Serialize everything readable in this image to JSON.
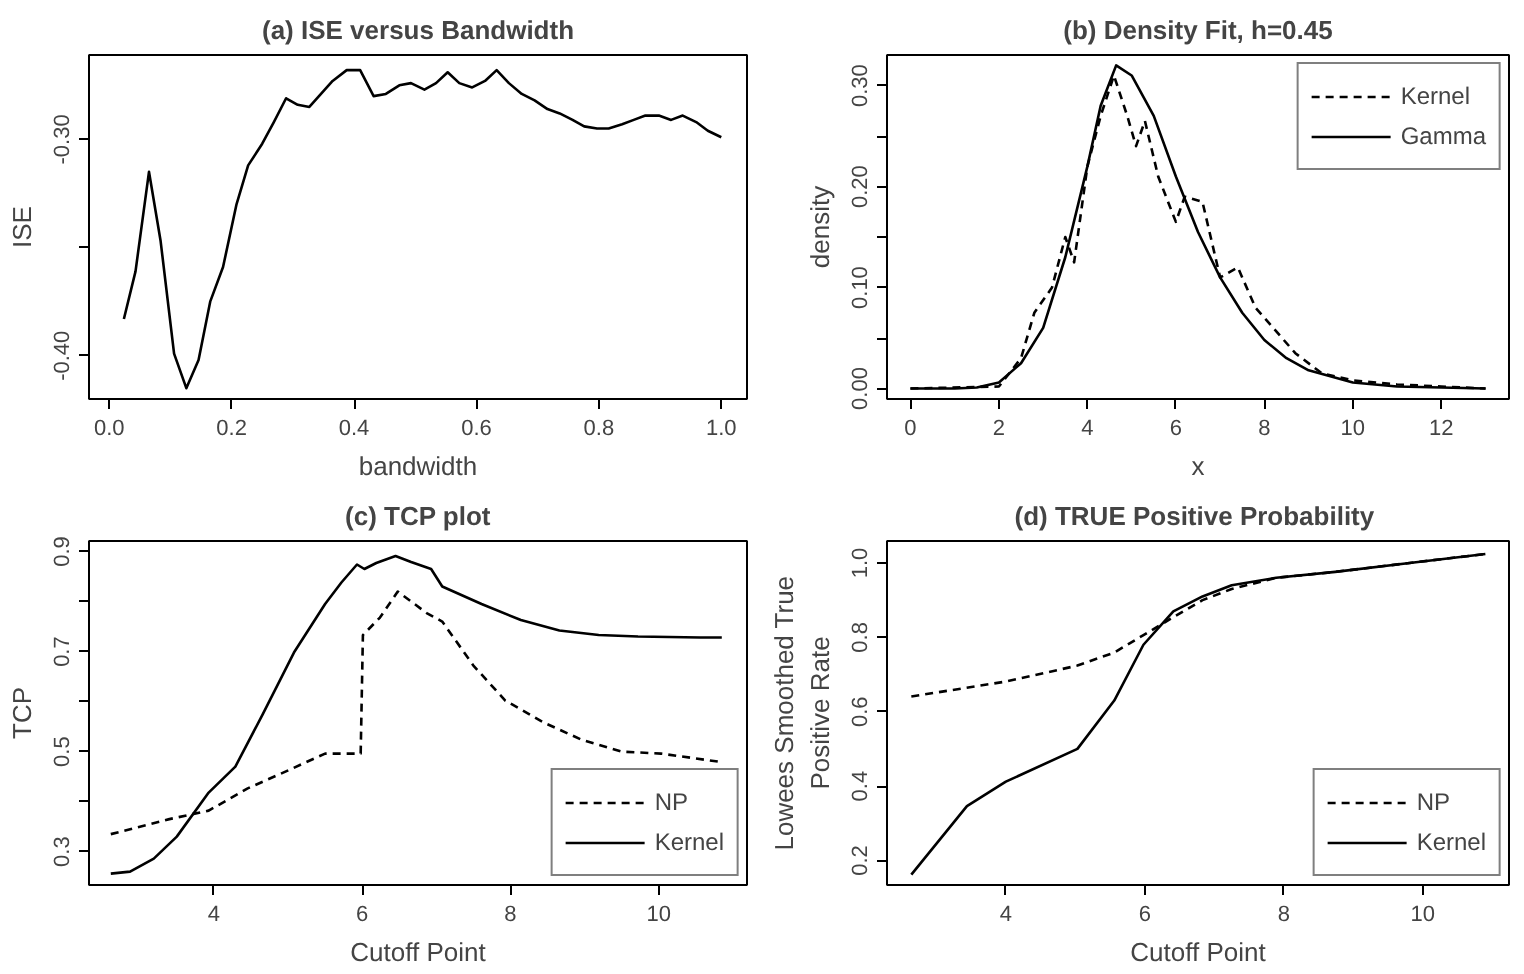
{
  "chart_data": [
    {
      "type": "line",
      "title": "(a) ISE versus Bandwidth",
      "xlabel": "bandwidth",
      "ylabel": "ISE",
      "xlim": [
        -0.033,
        1.042
      ],
      "ylim": [
        -0.42,
        -0.261
      ],
      "xticks": [
        {
          "value": 0,
          "label": "0.0"
        },
        {
          "value": 0.2,
          "label": "0.2"
        },
        {
          "value": 0.4,
          "label": "0.4"
        },
        {
          "value": 0.6,
          "label": "0.6"
        },
        {
          "value": 0.8,
          "label": "0.8"
        },
        {
          "value": 1,
          "label": "1.0"
        }
      ],
      "yticks": [
        {
          "value": -0.4,
          "label": "-0.40"
        },
        {
          "value": -0.35,
          "label": null
        },
        {
          "value": -0.3,
          "label": "-0.30"
        }
      ],
      "grid": false,
      "legend": false,
      "series": [
        {
          "color": "#000000",
          "line_style": "solid",
          "x": [
            0.024,
            0.043,
            0.065,
            0.084,
            0.106,
            0.126,
            0.146,
            0.165,
            0.186,
            0.208,
            0.227,
            0.25,
            0.269,
            0.289,
            0.308,
            0.327,
            0.346,
            0.365,
            0.388,
            0.41,
            0.432,
            0.452,
            0.474,
            0.493,
            0.515,
            0.534,
            0.553,
            0.572,
            0.593,
            0.614,
            0.633,
            0.653,
            0.674,
            0.695,
            0.716,
            0.736,
            0.757,
            0.776,
            0.797,
            0.816,
            0.838,
            0.857,
            0.876,
            0.898,
            0.918,
            0.937,
            0.959,
            0.978,
            1.0
          ],
          "values": [
            -0.383,
            -0.361,
            -0.315,
            -0.347,
            -0.399,
            -0.415,
            -0.402,
            -0.375,
            -0.359,
            -0.33,
            -0.312,
            -0.302,
            -0.292,
            -0.281,
            -0.284,
            -0.285,
            -0.279,
            -0.273,
            -0.268,
            -0.268,
            -0.28,
            -0.279,
            -0.275,
            -0.274,
            -0.277,
            -0.274,
            -0.269,
            -0.274,
            -0.276,
            -0.273,
            -0.268,
            -0.274,
            -0.279,
            -0.282,
            -0.286,
            -0.288,
            -0.291,
            -0.294,
            -0.295,
            -0.295,
            -0.293,
            -0.291,
            -0.289,
            -0.289,
            -0.291,
            -0.289,
            -0.292,
            -0.296,
            -0.299
          ]
        }
      ]
    },
    {
      "type": "line",
      "title": "(b) Density Fit, h=0.45",
      "xlabel": "x",
      "ylabel": "density",
      "xlim": [
        -0.53,
        13.53
      ],
      "ylim": [
        -0.0104,
        0.3303
      ],
      "xticks": [
        0,
        2,
        4,
        6,
        8,
        10,
        12
      ],
      "yticks": [
        {
          "value": 0,
          "label": "0.00"
        },
        {
          "value": 0.05,
          "label": null
        },
        {
          "value": 0.1,
          "label": "0.10"
        },
        {
          "value": 0.15,
          "label": null
        },
        {
          "value": 0.2,
          "label": "0.20"
        },
        {
          "value": 0.25,
          "label": null
        },
        {
          "value": 0.3,
          "label": "0.30"
        }
      ],
      "grid": false,
      "legend": "top right",
      "series": [
        {
          "name": "Kernel",
          "color": "#000000",
          "line_style": "dashed",
          "x": [
            0,
            2,
            2.5,
            2.8,
            3.2,
            3.5,
            3.7,
            4,
            4.3,
            4.6,
            4.9,
            5.1,
            5.3,
            5.6,
            6,
            6.2,
            6.6,
            7,
            7.4,
            7.8,
            8.2,
            8.7,
            9.3,
            10,
            11,
            12,
            13
          ],
          "values": [
            0,
            0.002,
            0.03,
            0.075,
            0.1,
            0.15,
            0.125,
            0.22,
            0.27,
            0.31,
            0.27,
            0.24,
            0.265,
            0.21,
            0.165,
            0.19,
            0.185,
            0.11,
            0.12,
            0.08,
            0.06,
            0.035,
            0.015,
            0.008,
            0.004,
            0.002,
            0
          ]
        },
        {
          "name": "Gamma",
          "color": "#000000",
          "line_style": "solid",
          "x": [
            0,
            1,
            1.5,
            2,
            2.5,
            3,
            3.5,
            4,
            4.3,
            4.65,
            5,
            5.5,
            6,
            6.5,
            7,
            7.5,
            8,
            8.5,
            9,
            10,
            11,
            12,
            13
          ],
          "values": [
            0,
            0,
            0.001,
            0.006,
            0.025,
            0.06,
            0.13,
            0.22,
            0.28,
            0.32,
            0.31,
            0.27,
            0.21,
            0.155,
            0.11,
            0.075,
            0.048,
            0.03,
            0.018,
            0.006,
            0.002,
            0.001,
            0
          ]
        }
      ]
    },
    {
      "type": "line",
      "title": "(c) TCP plot",
      "xlabel": "Cutoff Point",
      "ylabel": "TCP",
      "xlim": [
        2.316,
        11.19
      ],
      "ylim": [
        0.2333,
        0.921
      ],
      "xticks": [
        4,
        6,
        8,
        10
      ],
      "yticks": [
        0.3,
        {
          "value": 0.4,
          "label": null
        },
        0.5,
        {
          "value": 0.6,
          "label": null
        },
        0.7,
        {
          "value": 0.8,
          "label": null
        },
        0.9
      ],
      "grid": false,
      "legend": "bottom right",
      "series": [
        {
          "name": "NP",
          "color": "#000000",
          "line_style": "dashed",
          "x": [
            2.61,
            3.4,
            3.93,
            4.45,
            4.98,
            5.5,
            5.98,
            6.01,
            6.24,
            6.48,
            6.87,
            7.08,
            7.5,
            7.93,
            8.45,
            8.97,
            9.5,
            10.03,
            10.85
          ],
          "values": [
            0.335,
            0.365,
            0.382,
            0.426,
            0.461,
            0.496,
            0.496,
            0.733,
            0.768,
            0.82,
            0.777,
            0.76,
            0.672,
            0.602,
            0.558,
            0.523,
            0.5,
            0.496,
            0.479
          ]
        },
        {
          "name": "Kernel",
          "color": "#000000",
          "line_style": "solid",
          "x": [
            2.61,
            2.87,
            3.19,
            3.5,
            3.93,
            4.29,
            4.66,
            5.08,
            5.5,
            5.72,
            5.93,
            6.03,
            6.19,
            6.45,
            6.66,
            6.93,
            7.08,
            7.61,
            8.14,
            8.66,
            9.19,
            9.72,
            10.56,
            10.85
          ],
          "values": [
            0.256,
            0.26,
            0.286,
            0.33,
            0.418,
            0.47,
            0.575,
            0.698,
            0.795,
            0.838,
            0.874,
            0.865,
            0.877,
            0.891,
            0.879,
            0.865,
            0.83,
            0.795,
            0.763,
            0.742,
            0.733,
            0.73,
            0.728,
            0.728
          ]
        }
      ]
    },
    {
      "type": "line",
      "title": "(d)  TRUE Positive Probability",
      "xlabel": "Cutoff Point",
      "ylabel": "Lowees Smoothed True\nPositive Rate",
      "xlim": [
        2.29,
        11.24
      ],
      "ylim": [
        0.134,
        1.059
      ],
      "xticks": [
        4,
        6,
        8,
        10
      ],
      "yticks": [
        0.2,
        0.4,
        0.6,
        0.8,
        {
          "value": 1,
          "label": "1.0"
        }
      ],
      "grid": false,
      "legend": "bottom right",
      "series": [
        {
          "name": "NP",
          "color": "#000000",
          "line_style": "dashed",
          "x": [
            2.64,
            4.0,
            5.03,
            5.56,
            5.98,
            6.41,
            6.83,
            7.25,
            7.89,
            8.74,
            9.81,
            10.9
          ],
          "values": [
            0.641,
            0.681,
            0.724,
            0.759,
            0.806,
            0.854,
            0.9,
            0.93,
            0.96,
            0.976,
            1.0,
            1.024
          ]
        },
        {
          "name": "Kernel",
          "color": "#000000",
          "line_style": "solid",
          "x": [
            2.64,
            3.44,
            4.0,
            5.03,
            5.56,
            5.98,
            6.41,
            6.83,
            7.25,
            7.89,
            8.74,
            9.81,
            10.9
          ],
          "values": [
            0.162,
            0.346,
            0.412,
            0.5,
            0.63,
            0.78,
            0.87,
            0.91,
            0.94,
            0.96,
            0.976,
            1.0,
            1.024
          ]
        }
      ]
    }
  ]
}
